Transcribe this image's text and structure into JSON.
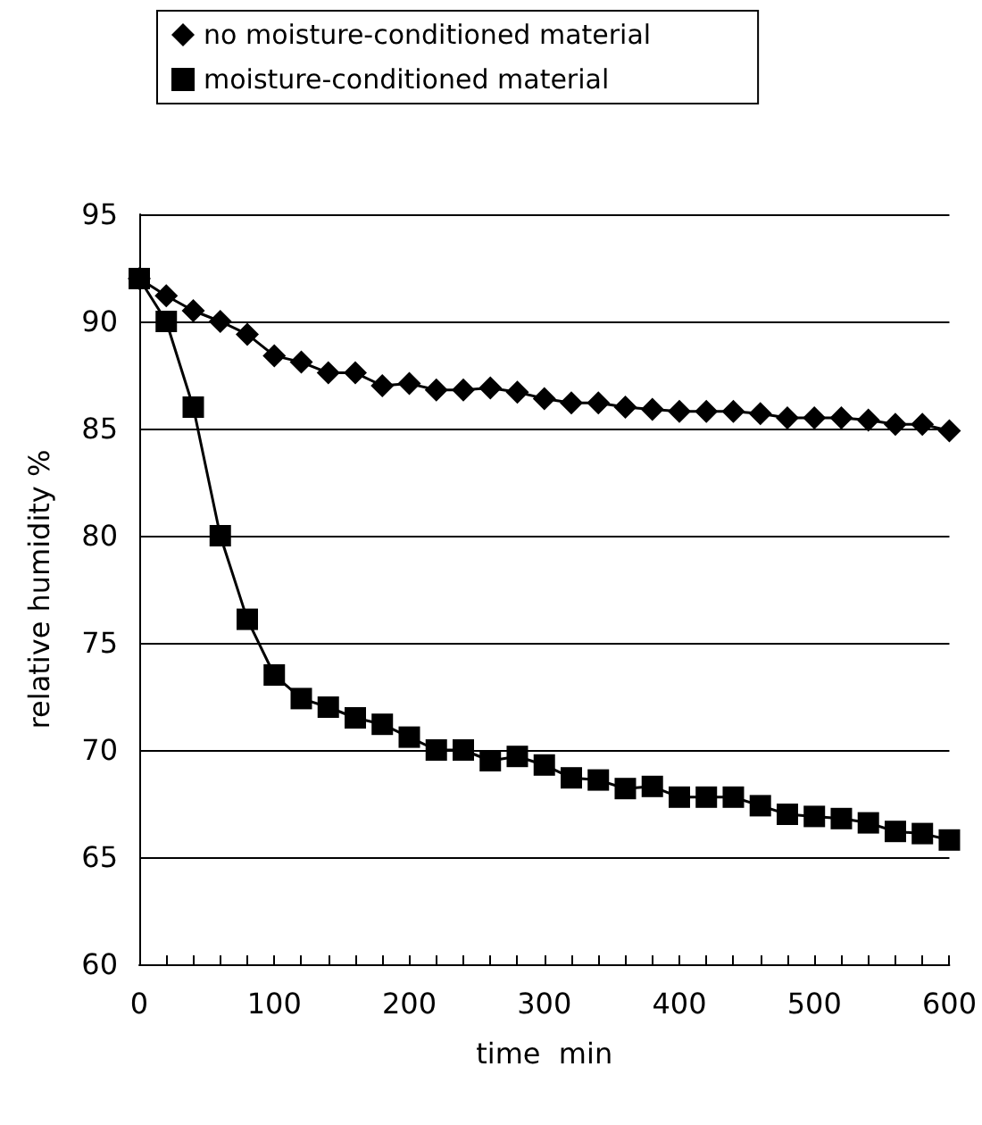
{
  "chart_data": {
    "type": "line",
    "xlabel": "time  min",
    "ylabel": "relative humidity %",
    "x": [
      0,
      20,
      40,
      60,
      80,
      100,
      120,
      140,
      160,
      180,
      200,
      220,
      240,
      260,
      280,
      300,
      320,
      340,
      360,
      380,
      400,
      420,
      440,
      460,
      480,
      500,
      520,
      540,
      560,
      580,
      600
    ],
    "series": [
      {
        "name": "no moisture-conditioned material",
        "color": "#000000",
        "marker": "diamond",
        "values": [
          92,
          91.2,
          90.5,
          90.0,
          89.4,
          88.4,
          88.1,
          87.6,
          87.6,
          87.0,
          87.1,
          86.8,
          86.8,
          86.9,
          86.7,
          86.4,
          86.2,
          86.2,
          86.0,
          85.9,
          85.8,
          85.8,
          85.8,
          85.7,
          85.5,
          85.5,
          85.5,
          85.4,
          85.2,
          85.2,
          84.9
        ]
      },
      {
        "name": "moisture-conditioned material",
        "color": "#000000",
        "marker": "square",
        "values": [
          92,
          90,
          86,
          80,
          76.1,
          73.5,
          72.4,
          72.0,
          71.5,
          71.2,
          70.6,
          70.0,
          70.0,
          69.5,
          69.7,
          69.3,
          68.7,
          68.6,
          68.2,
          68.3,
          67.8,
          67.8,
          67.8,
          67.4,
          67.0,
          66.9,
          66.8,
          66.6,
          66.2,
          66.1,
          65.8
        ]
      }
    ],
    "xlim": [
      0,
      600
    ],
    "xticks": [
      0,
      100,
      200,
      300,
      400,
      500,
      600
    ],
    "ylim": [
      60,
      95
    ],
    "yticks": [
      60,
      65,
      70,
      75,
      80,
      85,
      90,
      95
    ],
    "grid": "y",
    "legend": "top",
    "line_style": "solid"
  }
}
